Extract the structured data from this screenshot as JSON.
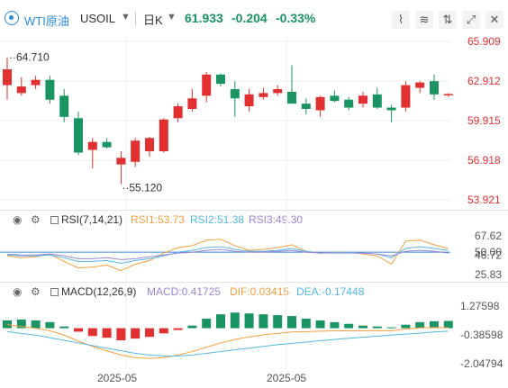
{
  "header": {
    "symbol": "WTI原油",
    "code": "USOIL",
    "period": "日K",
    "last_price": "61.933",
    "change": "-0.204",
    "change_pct": "-0.33%",
    "icons": [
      "draw-tool-icon",
      "indicator-icon",
      "compare-icon",
      "fullscreen-icon",
      "close-icon"
    ]
  },
  "colors": {
    "up": "#e03030",
    "down": "#1a9462",
    "accent": "#2a8ad8"
  },
  "price_axis": [
    "65.909",
    "62.912",
    "59.915",
    "56.918",
    "53.921"
  ],
  "annotations": {
    "high": "64.710",
    "low": "55.120"
  },
  "rsi": {
    "title": "RSI(7,14,21)",
    "rsi1": "RSI1:53.73",
    "rsi2": "RSI2:51.38",
    "rsi3": "RSI3:49.30",
    "axis": [
      "67.62",
      "50.00",
      "46.72",
      "25.83"
    ]
  },
  "macd": {
    "title": "MACD(12,26,9)",
    "macd": "MACD:0.41725",
    "dif": "DIF:0.03415",
    "dea": "DEA:-0.17448",
    "axis": [
      "1.27598",
      "-0.38598",
      "-2.04794"
    ]
  },
  "dates": [
    "2025-05",
    "2025-05"
  ],
  "chart_data": [
    {
      "type": "candlestick",
      "ylim": [
        53.921,
        65.909
      ],
      "ticks": [
        65.909,
        62.912,
        59.915,
        56.918,
        53.921
      ],
      "annotations": [
        {
          "text": "64.710",
          "value": 64.71
        },
        {
          "text": "55.120",
          "value": 55.12
        }
      ],
      "candles": [
        {
          "o": 62.6,
          "h": 64.7,
          "l": 61.5,
          "c": 63.8
        },
        {
          "o": 62.0,
          "h": 63.2,
          "l": 61.8,
          "c": 62.5
        },
        {
          "o": 62.6,
          "h": 63.3,
          "l": 62.3,
          "c": 63.0
        },
        {
          "o": 63.0,
          "h": 63.3,
          "l": 61.2,
          "c": 61.5
        },
        {
          "o": 61.8,
          "h": 62.3,
          "l": 59.8,
          "c": 60.2
        },
        {
          "o": 60.1,
          "h": 60.6,
          "l": 57.3,
          "c": 57.5
        },
        {
          "o": 57.7,
          "h": 58.6,
          "l": 56.3,
          "c": 58.3
        },
        {
          "o": 58.3,
          "h": 58.6,
          "l": 57.8,
          "c": 57.9
        },
        {
          "o": 56.6,
          "h": 57.6,
          "l": 55.1,
          "c": 57.1
        },
        {
          "o": 56.8,
          "h": 58.6,
          "l": 56.4,
          "c": 58.4
        },
        {
          "o": 57.6,
          "h": 58.7,
          "l": 57.2,
          "c": 58.6
        },
        {
          "o": 57.6,
          "h": 60.1,
          "l": 57.5,
          "c": 60.0
        },
        {
          "o": 60.1,
          "h": 61.2,
          "l": 59.8,
          "c": 61.0
        },
        {
          "o": 60.8,
          "h": 62.3,
          "l": 60.6,
          "c": 61.6
        },
        {
          "o": 61.8,
          "h": 63.6,
          "l": 61.3,
          "c": 63.4
        },
        {
          "o": 63.4,
          "h": 63.5,
          "l": 62.5,
          "c": 62.7
        },
        {
          "o": 62.3,
          "h": 62.9,
          "l": 60.2,
          "c": 61.6
        },
        {
          "o": 61.0,
          "h": 62.3,
          "l": 60.6,
          "c": 61.9
        },
        {
          "o": 61.7,
          "h": 62.4,
          "l": 61.5,
          "c": 62.0
        },
        {
          "o": 62.0,
          "h": 62.6,
          "l": 61.8,
          "c": 62.3
        },
        {
          "o": 62.1,
          "h": 64.1,
          "l": 61.3,
          "c": 61.2
        },
        {
          "o": 61.2,
          "h": 61.6,
          "l": 60.4,
          "c": 60.8
        },
        {
          "o": 60.7,
          "h": 61.8,
          "l": 60.2,
          "c": 61.7
        },
        {
          "o": 61.8,
          "h": 62.2,
          "l": 61.3,
          "c": 61.4
        },
        {
          "o": 61.5,
          "h": 61.7,
          "l": 60.7,
          "c": 60.9
        },
        {
          "o": 61.2,
          "h": 62.1,
          "l": 60.9,
          "c": 61.8
        },
        {
          "o": 61.9,
          "h": 62.4,
          "l": 60.8,
          "c": 60.9
        },
        {
          "o": 60.9,
          "h": 61.1,
          "l": 59.8,
          "c": 60.7
        },
        {
          "o": 60.9,
          "h": 62.9,
          "l": 60.6,
          "c": 62.6
        },
        {
          "o": 62.4,
          "h": 62.9,
          "l": 62.0,
          "c": 62.8
        },
        {
          "o": 62.9,
          "h": 63.4,
          "l": 61.5,
          "c": 61.9
        },
        {
          "o": 61.9,
          "h": 62.0,
          "l": 61.7,
          "c": 61.93
        }
      ]
    },
    {
      "type": "line",
      "name": "RSI(7,14,21)",
      "ylim": [
        25.83,
        67.62
      ],
      "series": [
        {
          "name": "RSI1",
          "color": "#f2a03f",
          "values": [
            46,
            44,
            45,
            48,
            40,
            33,
            34,
            36,
            30,
            37,
            41,
            49,
            55,
            57,
            63,
            64,
            57,
            52,
            53,
            55,
            58,
            51,
            49,
            50,
            50,
            48,
            46,
            37,
            62,
            63,
            58,
            54
          ]
        },
        {
          "name": "RSI2",
          "color": "#55b8e0",
          "values": [
            47,
            46,
            46,
            47,
            44,
            40,
            40,
            41,
            38,
            41,
            43,
            46,
            50,
            52,
            55,
            56,
            53,
            51,
            51,
            52,
            54,
            51,
            49,
            50,
            50,
            49,
            48,
            44,
            54,
            56,
            54,
            52
          ]
        },
        {
          "name": "RSI3",
          "color": "#9a86d6",
          "values": [
            48,
            47,
            47,
            48,
            46,
            43,
            43,
            44,
            42,
            43,
            45,
            47,
            49,
            50,
            52,
            53,
            51,
            50,
            50,
            51,
            52,
            50,
            49,
            49,
            49,
            49,
            48,
            46,
            51,
            52,
            51,
            49
          ]
        }
      ]
    },
    {
      "type": "bar",
      "name": "MACD(12,26,9)",
      "ylim": [
        -2.04794,
        1.27598
      ],
      "hist": [
        0.45,
        0.5,
        0.45,
        0.35,
        0.1,
        -0.2,
        -0.45,
        -0.55,
        -0.7,
        -0.6,
        -0.5,
        -0.3,
        -0.1,
        0.15,
        0.55,
        0.8,
        0.9,
        0.85,
        0.8,
        0.75,
        0.7,
        0.55,
        0.45,
        0.35,
        0.25,
        0.15,
        0.1,
        0.05,
        0.2,
        0.35,
        0.4,
        0.42
      ],
      "series": [
        {
          "name": "DIF",
          "color": "#f2a03f",
          "values": [
            0.2,
            0.1,
            0.0,
            -0.15,
            -0.4,
            -0.75,
            -1.05,
            -1.3,
            -1.55,
            -1.7,
            -1.75,
            -1.7,
            -1.55,
            -1.35,
            -1.1,
            -0.85,
            -0.65,
            -0.5,
            -0.38,
            -0.3,
            -0.22,
            -0.2,
            -0.17,
            -0.15,
            -0.15,
            -0.15,
            -0.14,
            -0.15,
            -0.05,
            0.02,
            0.04,
            0.03
          ]
        },
        {
          "name": "DEA",
          "color": "#55b8e0",
          "values": [
            -0.2,
            -0.3,
            -0.4,
            -0.55,
            -0.7,
            -0.85,
            -1.0,
            -1.15,
            -1.3,
            -1.45,
            -1.55,
            -1.6,
            -1.6,
            -1.55,
            -1.45,
            -1.35,
            -1.25,
            -1.15,
            -1.05,
            -0.95,
            -0.88,
            -0.8,
            -0.72,
            -0.65,
            -0.58,
            -0.52,
            -0.46,
            -0.4,
            -0.34,
            -0.28,
            -0.22,
            -0.17
          ]
        }
      ]
    }
  ]
}
